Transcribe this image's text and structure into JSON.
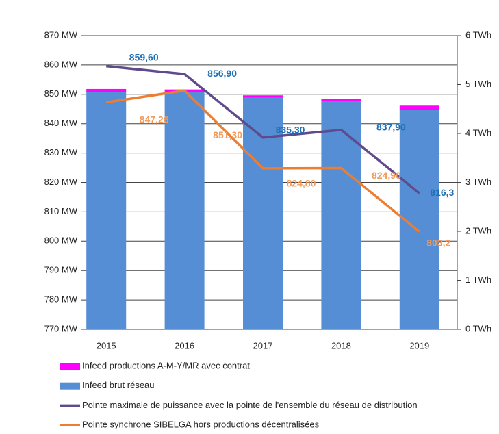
{
  "chart_data": {
    "type": "combo",
    "categories": [
      "2015",
      "2016",
      "2017",
      "2018",
      "2019"
    ],
    "ylim": [
      770,
      870
    ],
    "yticks": [
      {
        "value": 770,
        "label": "770 MW"
      },
      {
        "value": 780,
        "label": "780 MW"
      },
      {
        "value": 790,
        "label": "790 MW"
      },
      {
        "value": 800,
        "label": "800 MW"
      },
      {
        "value": 810,
        "label": "810 MW"
      },
      {
        "value": 820,
        "label": "820 MW"
      },
      {
        "value": 830,
        "label": "830 MW"
      },
      {
        "value": 840,
        "label": "840 MW"
      },
      {
        "value": 850,
        "label": "850 MW"
      },
      {
        "value": 860,
        "label": "860 MW"
      },
      {
        "value": 870,
        "label": "870 MW"
      }
    ],
    "y2lim": [
      0,
      6
    ],
    "y2ticks": [
      {
        "value": 0,
        "label": "0 TWh"
      },
      {
        "value": 1,
        "label": "1 TWh"
      },
      {
        "value": 2,
        "label": "2 TWh"
      },
      {
        "value": 3,
        "label": "3 TWh"
      },
      {
        "value": 4,
        "label": "4 TWh"
      },
      {
        "value": 5,
        "label": "5 TWh"
      },
      {
        "value": 6,
        "label": "6 TWh"
      }
    ],
    "grid": true,
    "series": [
      {
        "name": "Infeed productions A-M-Y/MR avec contrat",
        "type": "bar",
        "axis": "y2",
        "color": "#ff00ff",
        "values": [
          0.07,
          0.06,
          0.05,
          0.05,
          0.09
        ]
      },
      {
        "name": "Infeed brut réseau",
        "type": "bar",
        "axis": "y2",
        "color": "#558ed5",
        "values": [
          4.84,
          4.84,
          4.73,
          4.66,
          4.48
        ]
      },
      {
        "name": "Pointe maximale de puissance avec la pointe de l'ensemble du réseau de distribution",
        "type": "line",
        "color": "#5f4b8b",
        "label_color": "#1f6fb4",
        "values": [
          859.6,
          856.9,
          835.3,
          837.9,
          816.3
        ],
        "value_labels": [
          "859,60",
          "856,90",
          "835,30",
          "837,90",
          "816,3"
        ]
      },
      {
        "name": "Pointe synchrone SIBELGA hors productions décentralisées",
        "type": "line",
        "color": "#ed7d31",
        "label_color": "#f19a5a",
        "values": [
          847.26,
          851.3,
          824.8,
          824.9,
          803.2
        ],
        "value_labels": [
          "847,26",
          "851,30",
          "824,80",
          "824,90",
          "803,2"
        ]
      }
    ]
  }
}
